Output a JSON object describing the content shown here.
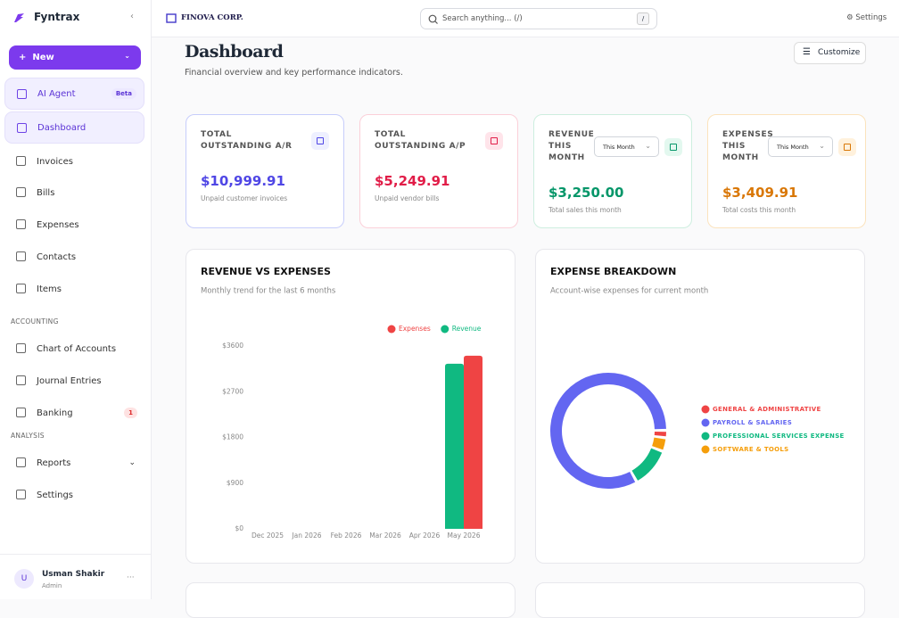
{
  "sidebar": {
    "brand": "Fyntrax",
    "new_button": "New",
    "nav": [
      {
        "label": "AI Agent",
        "badge": "Beta"
      },
      {
        "label": "Dashboard"
      },
      {
        "label": "Invoices"
      },
      {
        "label": "Bills"
      },
      {
        "label": "Expenses"
      },
      {
        "label": "Contacts"
      },
      {
        "label": "Items"
      }
    ],
    "sections": [
      {
        "title": "ACCOUNTING",
        "items": [
          {
            "label": "Chart of Accounts"
          },
          {
            "label": "Journal Entries"
          },
          {
            "label": "Banking",
            "badge": "1"
          }
        ]
      },
      {
        "title": "ANALYSIS",
        "items": [
          {
            "label": "Reports"
          },
          {
            "label": "Settings"
          }
        ]
      }
    ],
    "user": {
      "initial": "U",
      "name": "Usman Shakir",
      "role": "Admin"
    }
  },
  "topbar": {
    "company": "FINOVA CORP.",
    "search_placeholder": "Search anything... (/)",
    "search_shortcut": "/",
    "settings": "Settings"
  },
  "header": {
    "title": "Dashboard",
    "subtitle": "Financial overview and key performance indicators.",
    "customize": "Customize"
  },
  "cards": [
    {
      "title": "TOTAL OUTSTANDING A/R",
      "value": "$10,999.91",
      "note": "Unpaid customer invoices"
    },
    {
      "title": "TOTAL OUTSTANDING A/P",
      "value": "$5,249.91",
      "note": "Unpaid vendor bills"
    },
    {
      "title": "REVENUE THIS MONTH",
      "period": "This Month",
      "value": "$3,250.00",
      "note": "Total sales this month"
    },
    {
      "title": "EXPENSES THIS MONTH",
      "period": "This Month",
      "value": "$3,409.91",
      "note": "Total costs this month"
    }
  ],
  "chart_data": [
    {
      "type": "bar",
      "title": "REVENUE VS EXPENSES",
      "subtitle": "Monthly trend for the last 6 months",
      "categories": [
        "Dec 2025",
        "Jan 2026",
        "Feb 2026",
        "Mar 2026",
        "Apr 2026",
        "May 2026"
      ],
      "series": [
        {
          "name": "Expenses",
          "color": "#ef4444",
          "values": [
            0,
            0,
            0,
            0,
            0,
            3409.91
          ]
        },
        {
          "name": "Revenue",
          "color": "#10b981",
          "values": [
            0,
            0,
            0,
            0,
            0,
            3250
          ]
        }
      ],
      "ylim": [
        0,
        3600
      ],
      "yticks": [
        {
          "value": 0,
          "label": "$0"
        },
        {
          "value": 900,
          "label": "$900"
        },
        {
          "value": 1800,
          "label": "$1800"
        },
        {
          "value": 2700,
          "label": "$2700"
        },
        {
          "value": 3600,
          "label": "$3600"
        }
      ],
      "legend": "top-right"
    },
    {
      "type": "pie",
      "donut": true,
      "title": "EXPENSE BREAKDOWN",
      "subtitle": "Account-wise expenses for current month",
      "categories": [
        "GENERAL & ADMINISTRATIVE",
        "PAYROLL & SALARIES",
        "PROFESSIONAL SERVICES EXPENSE",
        "SOFTWARE & TOOLS"
      ],
      "values": [
        70,
        2830,
        380,
        130
      ],
      "colors": [
        "#ef4444",
        "#6366f1",
        "#10b981",
        "#f59e0b"
      ],
      "legend": "right"
    }
  ]
}
